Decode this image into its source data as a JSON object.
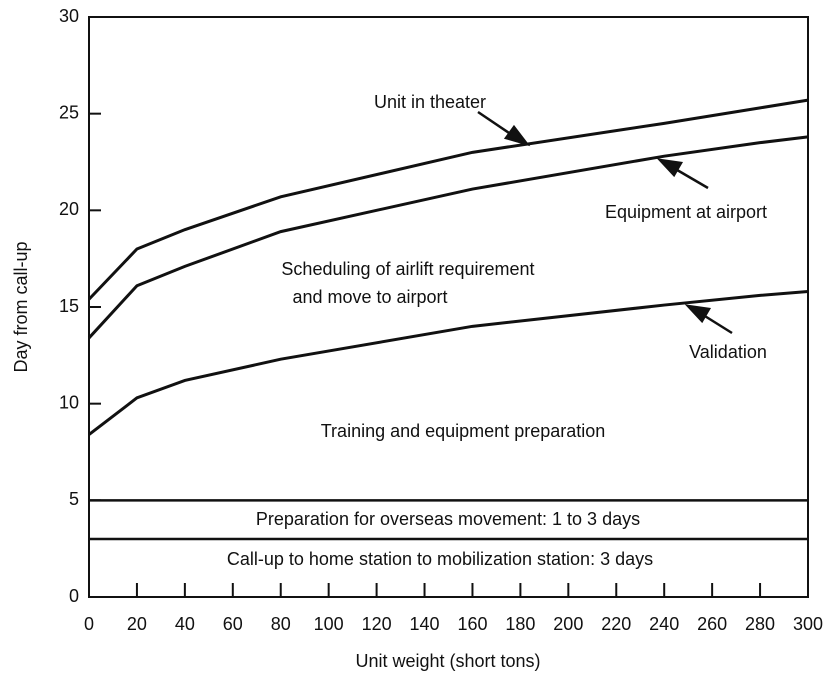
{
  "chart_data": {
    "type": "line",
    "xlabel": "Unit weight (short tons)",
    "ylabel": "Day from call-up",
    "x": [
      0,
      20,
      40,
      80,
      160,
      240,
      280,
      300
    ],
    "series": [
      {
        "name": "Unit in theater",
        "color": "#111111",
        "values": [
          15.4,
          18.0,
          19.0,
          20.7,
          23.0,
          24.5,
          25.3,
          25.7
        ]
      },
      {
        "name": "Equipment at airport",
        "color": "#111111",
        "values": [
          13.4,
          16.1,
          17.1,
          18.9,
          21.1,
          22.8,
          23.5,
          23.8
        ]
      },
      {
        "name": "Validation",
        "color": "#111111",
        "values": [
          8.4,
          10.3,
          11.2,
          12.3,
          14.0,
          15.1,
          15.6,
          15.8
        ]
      }
    ],
    "hlines": [
      5,
      3
    ],
    "annotations": [
      "Scheduling of airlift requirement",
      "and move to airport",
      "Training and equipment preparation",
      "Preparation for overseas movement:  1 to 3 days",
      "Call-up to home station to mobilization station:  3 days"
    ],
    "xlim": [
      0,
      300
    ],
    "ylim": [
      0,
      30
    ],
    "xticks": [
      0,
      20,
      40,
      60,
      80,
      100,
      120,
      140,
      160,
      180,
      200,
      220,
      240,
      260,
      280,
      300
    ],
    "yticks": [
      0,
      5,
      10,
      15,
      20,
      25,
      30
    ]
  }
}
